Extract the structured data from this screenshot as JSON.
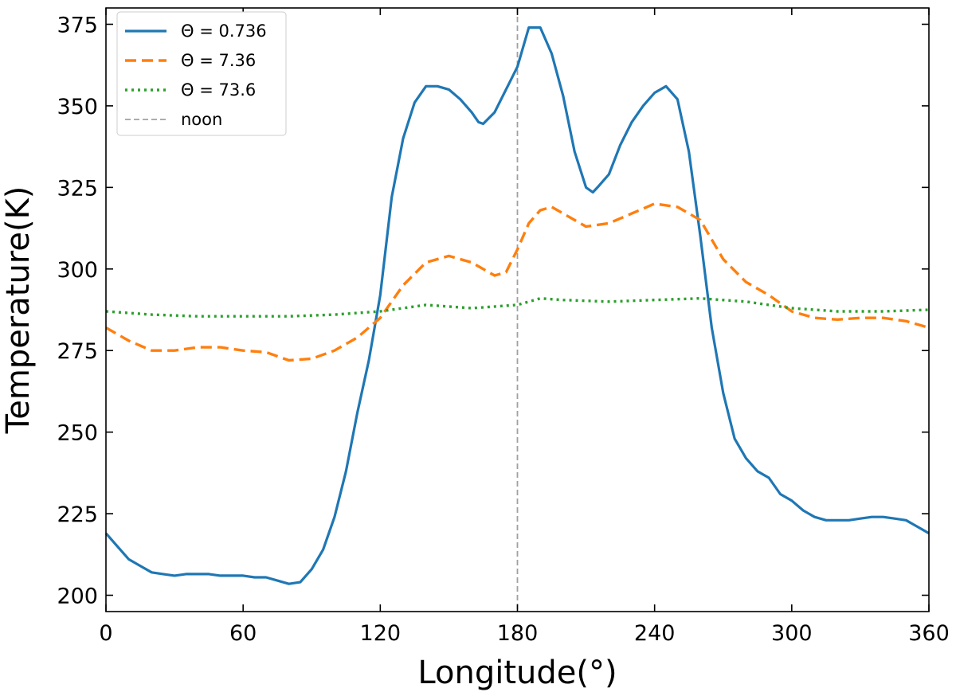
{
  "chart_data": {
    "type": "line",
    "title": "",
    "xlabel": "Longitude(°)",
    "ylabel": "Temperature(K)",
    "xlim": [
      0,
      360
    ],
    "ylim": [
      195,
      380
    ],
    "xticks": [
      0,
      60,
      120,
      180,
      240,
      300,
      360
    ],
    "yticks": [
      200,
      225,
      250,
      275,
      300,
      325,
      350,
      375
    ],
    "grid": false,
    "legend_position": "top-left",
    "series": [
      {
        "name": "Θ = 0.736",
        "color": "#1f77b4",
        "style": "solid",
        "x": [
          0,
          5,
          10,
          15,
          20,
          25,
          30,
          35,
          40,
          45,
          50,
          55,
          60,
          65,
          70,
          75,
          80,
          85,
          90,
          95,
          100,
          105,
          110,
          115,
          120,
          125,
          130,
          135,
          140,
          145,
          150,
          155,
          160,
          163,
          165,
          170,
          175,
          180,
          185,
          190,
          195,
          200,
          205,
          210,
          213,
          215,
          220,
          225,
          230,
          235,
          240,
          245,
          250,
          255,
          260,
          265,
          270,
          275,
          280,
          285,
          290,
          295,
          300,
          305,
          310,
          315,
          320,
          325,
          330,
          335,
          340,
          345,
          350,
          355,
          360
        ],
        "values": [
          219,
          215,
          211,
          209,
          207,
          206.5,
          206,
          206.5,
          206.5,
          206.5,
          206,
          206,
          206,
          205.5,
          205.5,
          204.5,
          203.5,
          204,
          208,
          214,
          224,
          238,
          256,
          272,
          292,
          322,
          340,
          351,
          356,
          356,
          355,
          352,
          348,
          345,
          344.5,
          348,
          355,
          362,
          374,
          374,
          366,
          353,
          336,
          325,
          323.5,
          325,
          329,
          338,
          345,
          350,
          354,
          356,
          352,
          336,
          310,
          282,
          262,
          248,
          242,
          238,
          236,
          231,
          229,
          226,
          224,
          223,
          223,
          223,
          223.5,
          224,
          224,
          223.5,
          223,
          221,
          219
        ]
      },
      {
        "name": "Θ = 7.36",
        "color": "#ff7f0e",
        "style": "dashed",
        "x": [
          0,
          10,
          20,
          30,
          40,
          50,
          60,
          70,
          80,
          90,
          100,
          110,
          120,
          130,
          140,
          150,
          160,
          170,
          175,
          180,
          185,
          190,
          195,
          200,
          210,
          220,
          230,
          240,
          250,
          260,
          270,
          280,
          290,
          300,
          310,
          320,
          330,
          340,
          350,
          360
        ],
        "values": [
          282,
          278,
          275,
          275,
          276,
          276,
          275,
          274.5,
          272,
          272.5,
          275,
          279,
          285,
          295,
          302,
          304,
          302,
          298,
          299,
          306,
          314,
          318,
          319,
          317,
          313,
          314,
          317,
          320,
          319,
          315,
          303,
          296,
          292,
          287,
          285,
          284.5,
          285,
          285,
          284,
          282
        ]
      },
      {
        "name": "Θ = 73.6",
        "color": "#2ca02c",
        "style": "dotted",
        "x": [
          0,
          20,
          40,
          60,
          80,
          100,
          120,
          140,
          160,
          180,
          190,
          200,
          220,
          240,
          260,
          280,
          300,
          320,
          340,
          360
        ],
        "values": [
          287,
          286,
          285.5,
          285.5,
          285.5,
          286,
          287,
          289,
          288,
          289,
          291,
          290.5,
          290,
          290.5,
          291,
          290,
          288,
          287,
          287,
          287.5
        ]
      },
      {
        "name": "noon",
        "color": "#a0a0a0",
        "style": "dashed-thin",
        "vline_x": 180
      }
    ]
  }
}
